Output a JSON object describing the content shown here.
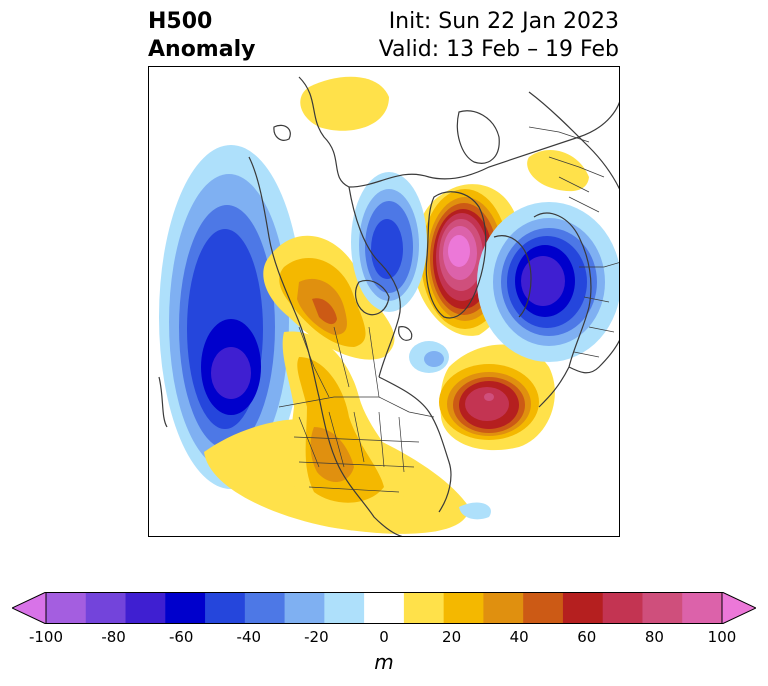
{
  "header": {
    "title_line1": "H500",
    "title_line2": "Anomaly",
    "init": "Init: Sun 22 Jan 2023",
    "valid": "Valid: 13 Feb – 19 Feb"
  },
  "colorbar": {
    "unit": "m",
    "ticks": [
      "-100",
      "-80",
      "-60",
      "-40",
      "-20",
      "0",
      "20",
      "40",
      "60",
      "80",
      "100"
    ],
    "colors": [
      "#d873e8",
      "#a45ee0",
      "#7344db",
      "#3f1fd1",
      "#0000cc",
      "#2546dc",
      "#4d78e6",
      "#7fb0f2",
      "#aee0fb",
      "#ffffff",
      "#ffe14a",
      "#f4b800",
      "#e0900f",
      "#cc5a15",
      "#b51f1f",
      "#c33452",
      "#cf4f7c",
      "#dc62aa",
      "#ec78d8"
    ]
  }
}
